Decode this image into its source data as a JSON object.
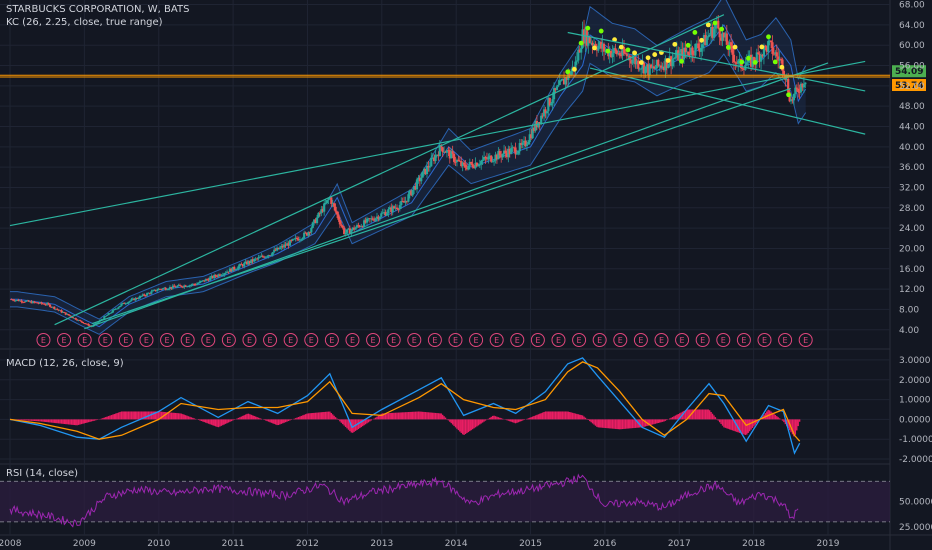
{
  "header": {
    "title": "STARBUCKS CORPORATION, W, BATS",
    "indicator_kc": "KC (26, 2.25, close, true range)"
  },
  "macd_panel": {
    "label": "MACD (12, 26, close, 9)"
  },
  "rsi_panel": {
    "label": "RSI (14, close)"
  },
  "colors": {
    "background": "#131722",
    "grid": "#1f2433",
    "axis_text": "#b2b5be",
    "up_candle": "#26a69a",
    "down_candle": "#ef5350",
    "channel": "#2a62ae",
    "trendline": "#2cb5a0",
    "horizontal_level": "#ff9800",
    "price_tag_green": "#4caf50",
    "price_tag_orange": "#ff9800",
    "earnings_marker": "#e0467c",
    "macd_line": "#2196f3",
    "signal_line": "#ff9800",
    "histogram": "#e91e63",
    "rsi_line": "#9c27b0",
    "rsi_band": "#2b1d3d",
    "dot_green": "#76ff03",
    "dot_yellow": "#ffeb3b"
  },
  "chart_data": [
    {
      "type": "line",
      "name": "price",
      "x_labels": [
        "2008",
        "2009",
        "2010",
        "2011",
        "2012",
        "2013",
        "2014",
        "2015",
        "2016",
        "2017",
        "2018",
        "2019"
      ],
      "x": [
        2008.0,
        2008.5,
        2008.9,
        2009.1,
        2009.5,
        2010.0,
        2010.5,
        2011.0,
        2011.5,
        2012.0,
        2012.3,
        2012.5,
        2012.9,
        2013.3,
        2013.8,
        2014.1,
        2014.5,
        2014.9,
        2015.3,
        2015.6,
        2015.7,
        2016.0,
        2016.3,
        2016.6,
        2017.0,
        2017.3,
        2017.5,
        2017.8,
        2018.0,
        2018.2,
        2018.4,
        2018.5,
        2018.7
      ],
      "y": [
        10,
        9,
        6,
        4.6,
        9,
        12,
        13,
        16,
        19,
        23,
        30,
        23,
        26,
        29,
        40,
        36,
        38,
        40,
        50,
        56,
        62,
        59,
        58,
        55,
        58,
        60,
        64,
        56,
        57,
        60,
        56,
        49,
        53.7
      ],
      "y_ticks": [
        4,
        8,
        12,
        16,
        20,
        24,
        28,
        32,
        36,
        40,
        44,
        48,
        52,
        56,
        60,
        64,
        68
      ],
      "y_tick_labels": [
        "4.00",
        "8.00",
        "12.00",
        "16.00",
        "20.00",
        "24.00",
        "28.00",
        "32.00",
        "36.00",
        "40.00",
        "44.00",
        "48.00",
        "52.00",
        "56.00",
        "60.00",
        "64.00",
        "68.00"
      ],
      "ylim": [
        1,
        68.5
      ],
      "price_labels": [
        "54.09",
        "53.74"
      ],
      "horizontal_levels": [
        54.09,
        53.74
      ],
      "earnings_label": "E",
      "earnings_count": 38,
      "grid": true
    },
    {
      "type": "line",
      "name": "MACD",
      "x": [
        2008.0,
        2008.4,
        2008.9,
        2009.2,
        2009.5,
        2010.0,
        2010.3,
        2010.8,
        2011.2,
        2011.6,
        2012.0,
        2012.3,
        2012.6,
        2013.0,
        2013.5,
        2013.8,
        2014.1,
        2014.5,
        2014.8,
        2015.2,
        2015.5,
        2015.7,
        2015.9,
        2016.2,
        2016.5,
        2016.8,
        2017.1,
        2017.4,
        2017.6,
        2017.9,
        2018.2,
        2018.4,
        2018.55,
        2018.62
      ],
      "macd": [
        0.0,
        -0.3,
        -0.9,
        -1.0,
        -0.4,
        0.4,
        1.1,
        0.1,
        0.9,
        0.3,
        1.2,
        2.3,
        -0.4,
        0.5,
        1.5,
        2.1,
        0.2,
        0.8,
        0.3,
        1.4,
        2.8,
        3.1,
        2.2,
        0.9,
        -0.4,
        -0.9,
        0.5,
        1.8,
        0.8,
        -1.1,
        0.7,
        0.4,
        -1.7,
        -1.2
      ],
      "signal": [
        0.0,
        -0.2,
        -0.6,
        -1.0,
        -0.8,
        0.0,
        0.8,
        0.5,
        0.6,
        0.6,
        0.9,
        1.9,
        0.3,
        0.2,
        1.1,
        1.8,
        1.0,
        0.6,
        0.5,
        1.0,
        2.4,
        2.9,
        2.6,
        1.4,
        0.0,
        -0.8,
        0.0,
        1.3,
        1.2,
        -0.3,
        0.2,
        0.5,
        -0.8,
        -1.1
      ],
      "y_ticks": [
        3,
        2,
        1,
        0,
        -1,
        -2
      ],
      "y_tick_labels": [
        "3.0000",
        "2.0000",
        "1.0000",
        "0.0000",
        "-1.0000",
        "-2.0000"
      ],
      "ylim": [
        -2.2,
        3.4
      ]
    },
    {
      "type": "line",
      "name": "RSI",
      "x": [
        2008.0,
        2008.5,
        2008.9,
        2009.3,
        2009.7,
        2010.2,
        2010.7,
        2011.2,
        2011.7,
        2012.2,
        2012.5,
        2012.9,
        2013.4,
        2013.8,
        2014.2,
        2014.6,
        2015.0,
        2015.4,
        2015.7,
        2016.0,
        2016.4,
        2016.8,
        2017.2,
        2017.5,
        2017.8,
        2018.1,
        2018.4,
        2018.5,
        2018.6
      ],
      "y": [
        42,
        36,
        28,
        55,
        62,
        58,
        63,
        60,
        56,
        66,
        50,
        60,
        66,
        70,
        48,
        58,
        62,
        68,
        74,
        46,
        50,
        44,
        60,
        66,
        48,
        58,
        48,
        33,
        42
      ],
      "y_ticks": [
        50,
        25
      ],
      "y_tick_labels": [
        "50.0000",
        "25.0000"
      ],
      "bands": [
        70,
        30
      ],
      "ylim": [
        20,
        85
      ]
    }
  ]
}
